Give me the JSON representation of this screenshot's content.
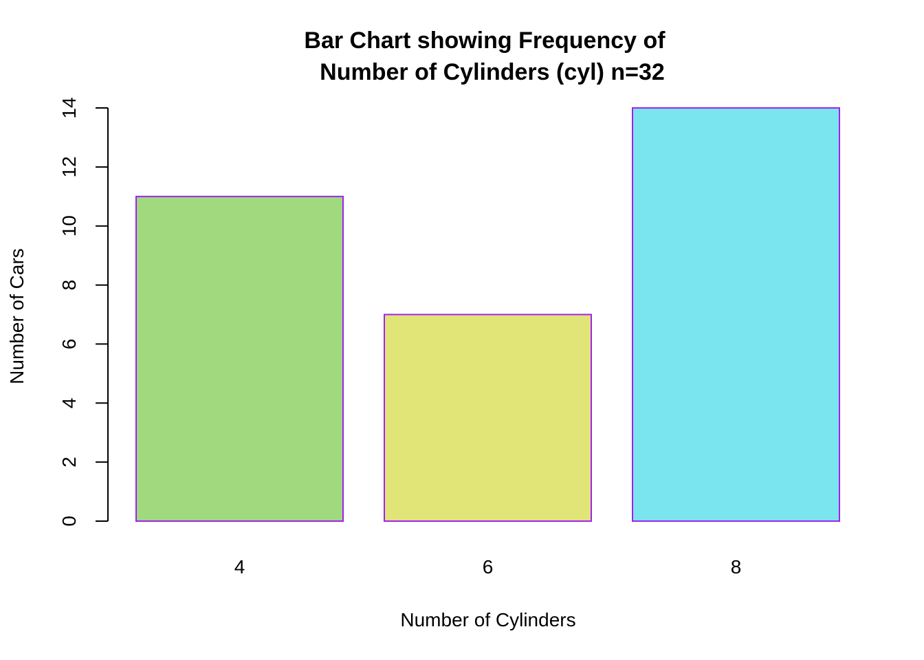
{
  "chart_data": {
    "type": "bar",
    "title_lines": [
      "Bar Chart showing Frequency of",
      "Number of Cylinders (cyl) n=32"
    ],
    "xlabel": "Number of Cylinders",
    "ylabel": "Number of Cars",
    "categories": [
      "4",
      "6",
      "8"
    ],
    "values": [
      11,
      7,
      14
    ],
    "ylim": [
      0,
      14
    ],
    "y_ticks": [
      0,
      2,
      4,
      6,
      8,
      10,
      12,
      14
    ],
    "bar_colors": [
      "#A1D97E",
      "#E1E476",
      "#7AE5EF"
    ],
    "bar_border_color": "#A020F0",
    "grid": false,
    "legend": "none"
  }
}
